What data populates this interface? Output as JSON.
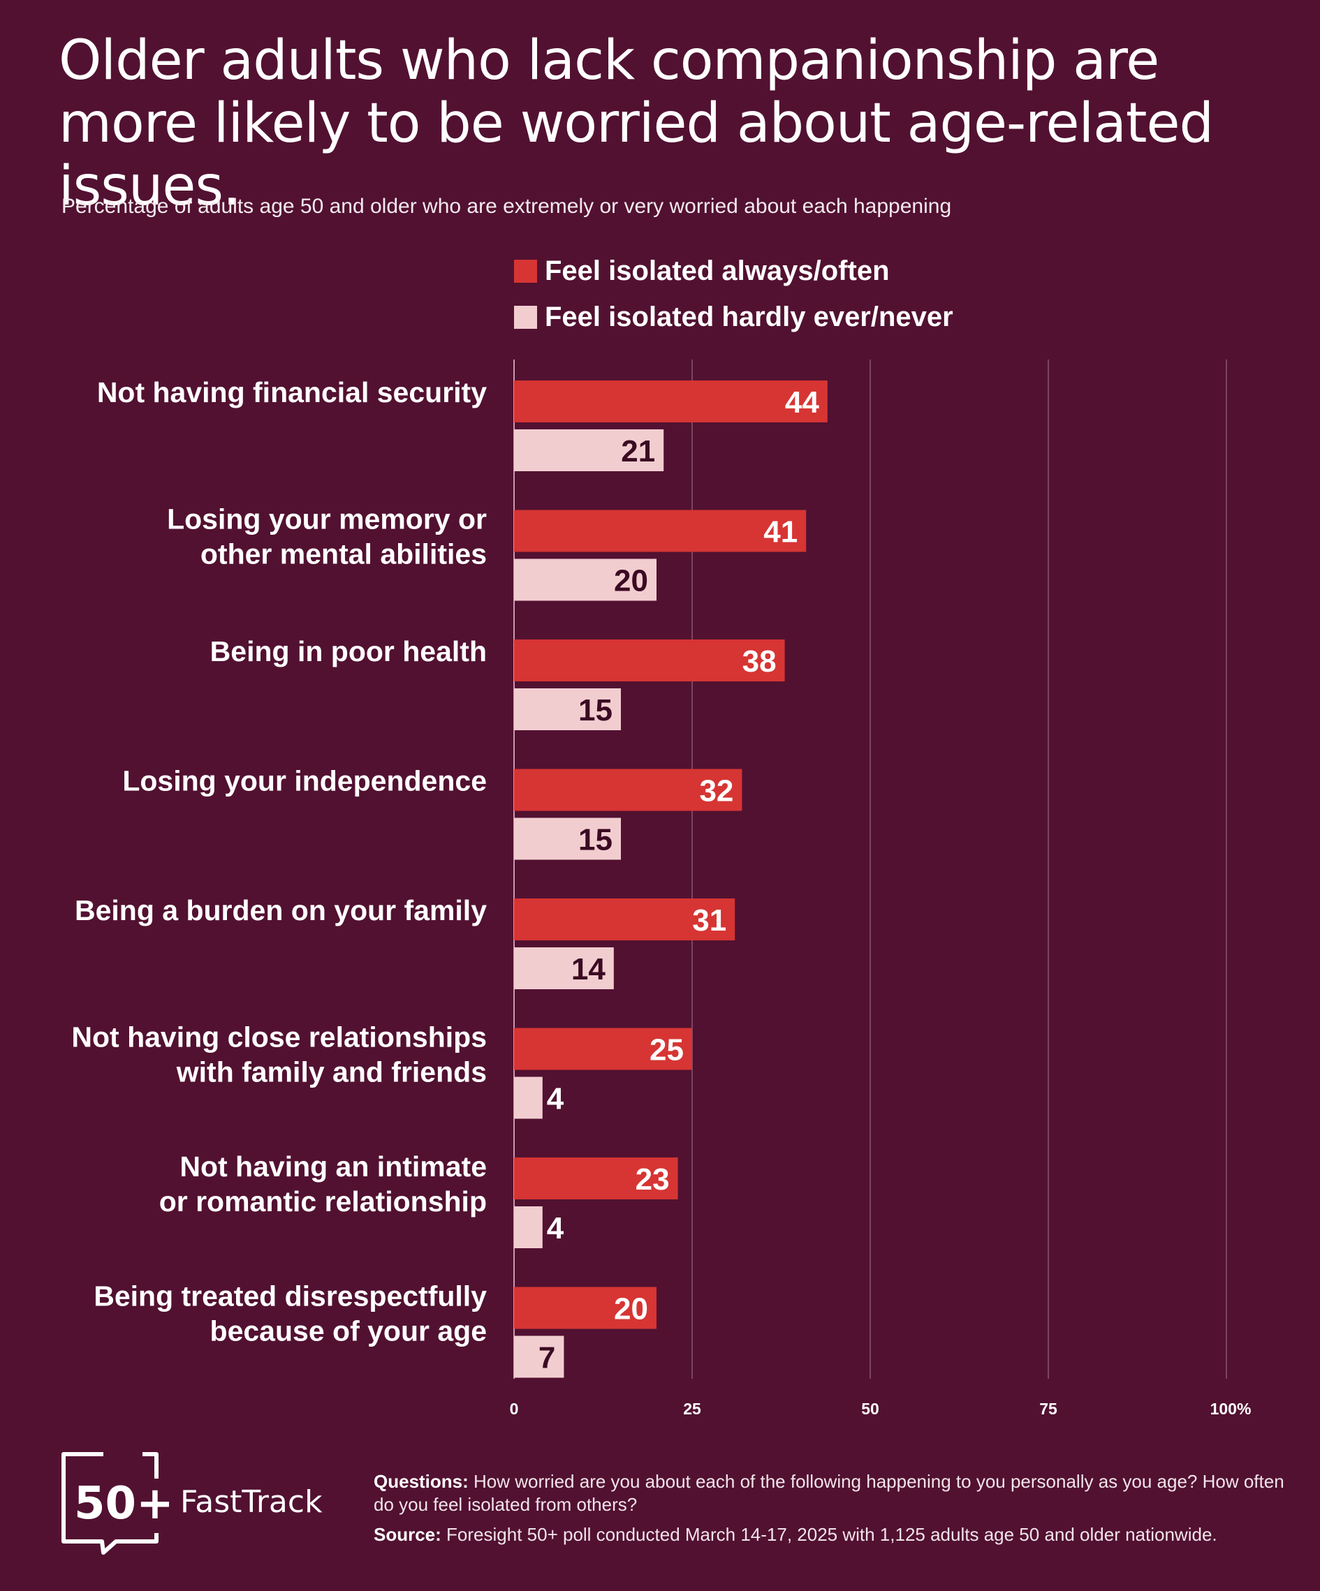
{
  "header": {
    "title": "Older adults who lack companionship are more likely to be worried about age-related issues.",
    "subtitle": "Percentage of adults age 50 and older who are extremely or very worried about each happening"
  },
  "chart_data": {
    "type": "bar",
    "orientation": "horizontal",
    "title": "Older adults who lack companionship are more likely to be worried about age-related issues.",
    "subtitle": "Percentage of adults age 50 and older who are extremely or very worried about each happening",
    "categories": [
      [
        "Not having financial security"
      ],
      [
        "Losing your memory or",
        "other mental abilities"
      ],
      [
        "Being in poor health"
      ],
      [
        "Losing your independence"
      ],
      [
        "Being a burden on your family"
      ],
      [
        "Not having close relationships",
        "with family and friends"
      ],
      [
        "Not having an intimate",
        "or romantic relationship"
      ],
      [
        "Being treated disrespectfully",
        "because of your age"
      ]
    ],
    "series": [
      {
        "name": "Feel isolated always/often",
        "color": "#d63533",
        "label_color": "#ffffff",
        "values": [
          44,
          41,
          38,
          32,
          31,
          25,
          23,
          20
        ]
      },
      {
        "name": "Feel isolated hardly ever/never",
        "color": "#f2cdd0",
        "label_color": "#3b0a22",
        "values": [
          21,
          20,
          15,
          15,
          14,
          4,
          4,
          7
        ]
      }
    ],
    "x_ticks": [
      "0",
      "25",
      "50",
      "75",
      "100%"
    ],
    "x_tick_values": [
      0,
      25,
      50,
      75,
      100
    ],
    "xlim": [
      0,
      100
    ],
    "grid": true,
    "legend_position": "top"
  },
  "footer": {
    "logo_number": "50+",
    "logo_name": "FastTrack",
    "questions_label": "Questions:",
    "questions_text": "How worried are you about each of the following happening to you personally as you age? How often do you feel isolated from others?",
    "source_label": "Source:",
    "source_text": "Foresight 50+ poll conducted March 14-17, 2025 with 1,125 adults age 50 and older nationwide."
  },
  "colors": {
    "background": "#521131",
    "accent_dark": "#d63533",
    "accent_light": "#f2cdd0",
    "gridline": "#8a5770"
  }
}
